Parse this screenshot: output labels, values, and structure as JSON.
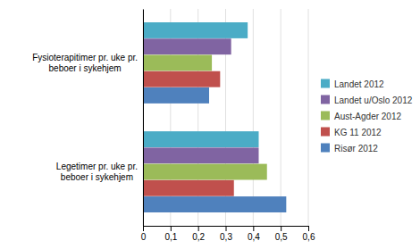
{
  "chart_data": {
    "type": "bar",
    "orientation": "horizontal",
    "categories": [
      "Fysioterapitimer pr. uke pr.\nbeboer i sykehjem",
      "Legetimer pr. uke pr.\nbeboer i sykehjem"
    ],
    "series": [
      {
        "name": "Landet 2012",
        "color": "#4BACC6",
        "values": [
          0.38,
          0.42
        ]
      },
      {
        "name": "Landet u/Oslo 2012",
        "color": "#8064A2",
        "values": [
          0.32,
          0.42
        ]
      },
      {
        "name": "Aust-Agder 2012",
        "color": "#9BBB59",
        "values": [
          0.25,
          0.45
        ]
      },
      {
        "name": "KG 11 2012",
        "color": "#C0504D",
        "values": [
          0.28,
          0.33
        ]
      },
      {
        "name": "Risør 2012",
        "color": "#4F81BD",
        "values": [
          0.24,
          0.52
        ]
      }
    ],
    "xlim": [
      0,
      0.6
    ],
    "xticks": [
      0,
      {
        "value": 0.1,
        "label": "0,1"
      },
      {
        "value": 0.2,
        "label": "0,2"
      },
      {
        "value": 0.3,
        "label": "0,3"
      },
      {
        "value": 0.4,
        "label": "0,4"
      },
      {
        "value": 0.5,
        "label": "0,5"
      },
      {
        "value": 0.6,
        "label": "0,6"
      }
    ],
    "grid": true,
    "legend": "right"
  }
}
